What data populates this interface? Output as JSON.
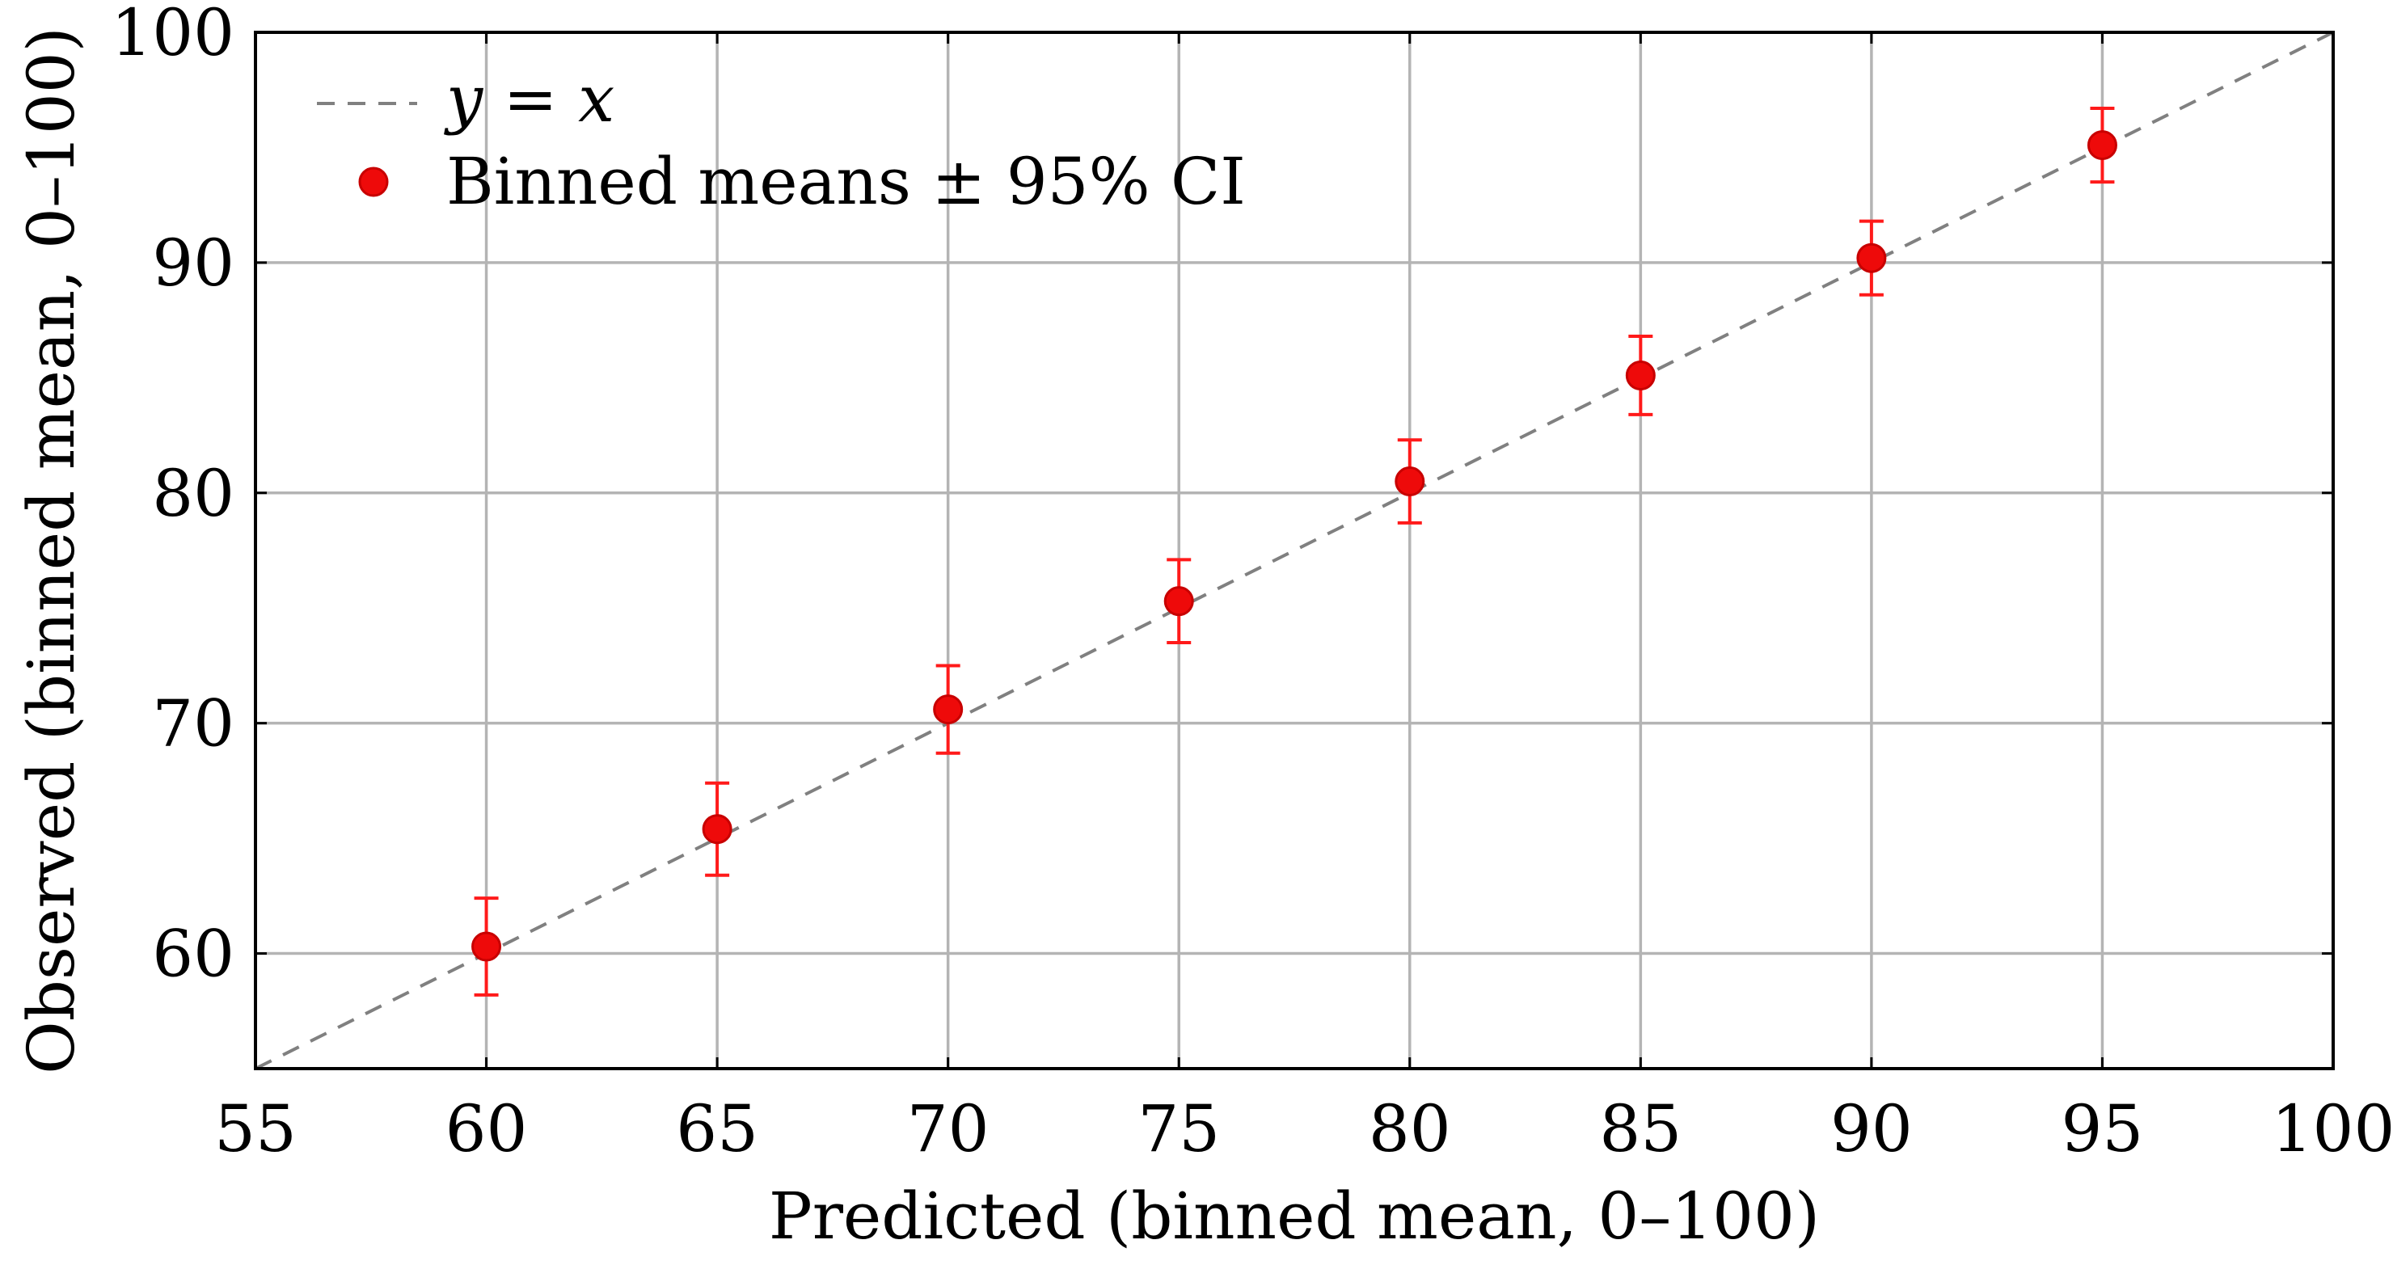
{
  "chart_data": {
    "type": "scatter",
    "title": "",
    "xlabel": "Predicted (binned mean, 0–100)",
    "ylabel": "Observed (binned mean, 0–100)",
    "xlim": [
      55,
      100
    ],
    "ylim": [
      55,
      100
    ],
    "x_ticks": [
      "55",
      "60",
      "65",
      "70",
      "75",
      "80",
      "85",
      "90",
      "95",
      "100"
    ],
    "y_ticks": [
      "60",
      "70",
      "80",
      "90",
      "100"
    ],
    "x_tick_values": [
      55,
      60,
      65,
      70,
      75,
      80,
      85,
      90,
      95,
      100
    ],
    "y_tick_values": [
      60,
      70,
      80,
      90,
      100
    ],
    "grid": true,
    "legend_position": "top-left",
    "series": [
      {
        "name": "Binned means",
        "legend_label": "Binned means ± 95% CI",
        "x": [
          60,
          65,
          70,
          75,
          80,
          85,
          90,
          95
        ],
        "y": [
          60.3,
          65.4,
          70.6,
          75.3,
          80.5,
          85.1,
          90.2,
          95.1
        ],
        "ci_lower": [
          58.2,
          63.4,
          68.7,
          73.5,
          78.7,
          83.4,
          88.6,
          93.5
        ],
        "ci_upper": [
          62.4,
          67.4,
          72.5,
          77.1,
          82.3,
          86.8,
          91.8,
          96.7
        ],
        "color": "#ee0a0a"
      },
      {
        "name": "y = x",
        "legend_label_parts": [
          "y",
          " = ",
          "x"
        ],
        "line": [
          [
            55,
            55
          ],
          [
            100,
            100
          ]
        ],
        "style": "dashed",
        "color": "#808080"
      }
    ]
  }
}
